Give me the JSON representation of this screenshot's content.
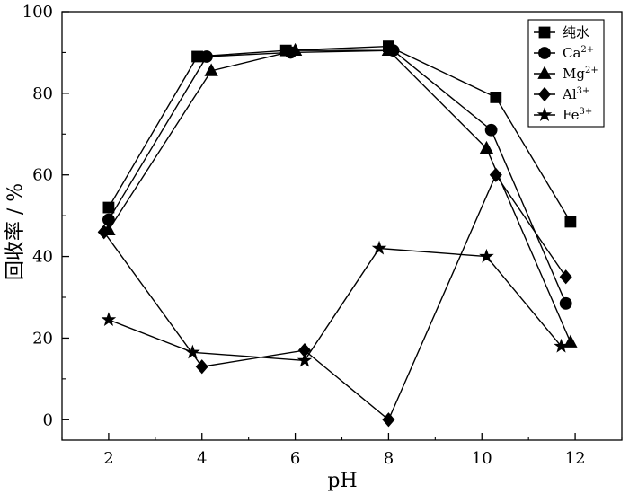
{
  "chart_data": {
    "type": "line",
    "xlabel": "pH",
    "ylabel": "回收率 / %",
    "xlim": [
      1,
      13
    ],
    "ylim": [
      -5,
      100
    ],
    "xticks": [
      2,
      4,
      6,
      8,
      10,
      12
    ],
    "yticks": [
      0,
      20,
      40,
      60,
      80,
      100
    ],
    "legend_position": "top-right",
    "grid": false,
    "series": [
      {
        "name": "纯水",
        "name_sup": "",
        "marker": "square",
        "x": [
          2.0,
          3.9,
          5.8,
          8.0,
          10.3,
          11.9
        ],
        "y": [
          52,
          89,
          90.5,
          91.5,
          79,
          48.5
        ]
      },
      {
        "name": "Ca",
        "name_sup": "2+",
        "marker": "circle",
        "x": [
          2.0,
          4.1,
          5.9,
          8.1,
          10.2,
          11.8
        ],
        "y": [
          49,
          89,
          90,
          90.5,
          71,
          28.5
        ]
      },
      {
        "name": "Mg",
        "name_sup": "2+",
        "marker": "triangle",
        "x": [
          2.0,
          4.2,
          6.0,
          8.0,
          10.1,
          11.9
        ],
        "y": [
          46.5,
          85.5,
          90.5,
          90.5,
          66.5,
          19
        ]
      },
      {
        "name": "Al",
        "name_sup": "3+",
        "marker": "diamond",
        "x": [
          1.9,
          4.0,
          6.2,
          8.0,
          10.3,
          11.8
        ],
        "y": [
          46,
          13,
          17,
          0,
          60,
          35
        ]
      },
      {
        "name": "Fe",
        "name_sup": "3+",
        "marker": "star",
        "x": [
          2.0,
          3.8,
          6.2,
          7.8,
          10.1,
          11.7
        ],
        "y": [
          24.5,
          16.5,
          14.5,
          42,
          40,
          18
        ]
      }
    ]
  }
}
